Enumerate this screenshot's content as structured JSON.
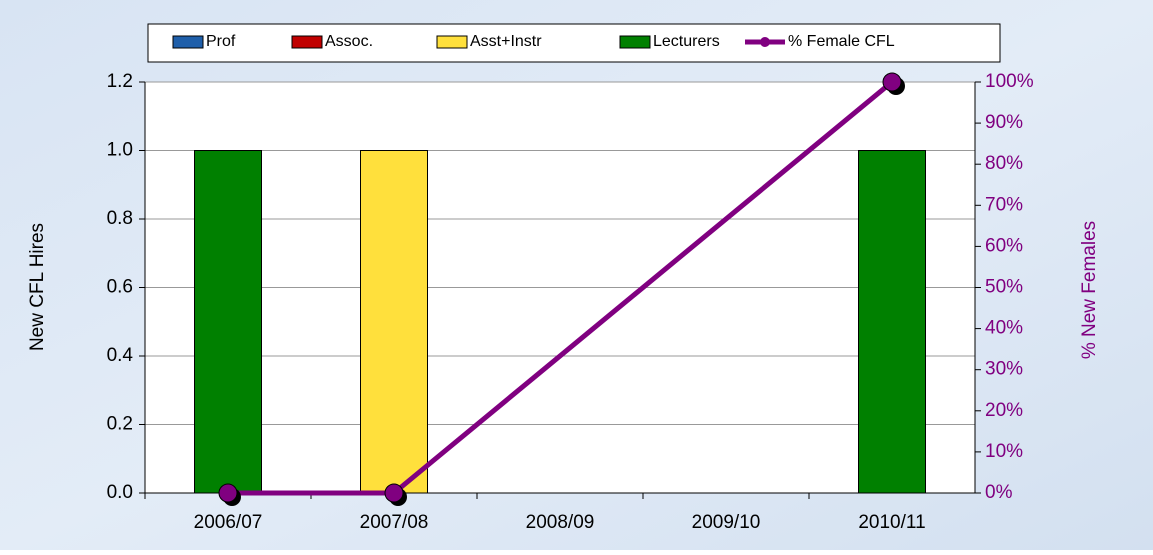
{
  "chart_data": {
    "type": "bar_line",
    "categories": [
      "2006/07",
      "2007/08",
      "2008/09",
      "2009/10",
      "2010/11"
    ],
    "series": [
      {
        "name": "Prof",
        "color": "#1f5faa",
        "values": [
          0,
          0,
          0,
          0,
          0
        ]
      },
      {
        "name": "Assoc.",
        "color": "#c00000",
        "values": [
          0,
          0,
          0,
          0,
          0
        ]
      },
      {
        "name": "Asst+Instr",
        "color": "#ffe03c",
        "values": [
          0,
          1,
          0,
          0,
          0
        ]
      },
      {
        "name": "Lecturers",
        "color": "#008000",
        "values": [
          1,
          0,
          0,
          0,
          1
        ]
      },
      {
        "name": "% Female CFL",
        "color": "#800080",
        "type": "line",
        "axis": "y2",
        "values": [
          0,
          0,
          null,
          null,
          100
        ]
      }
    ],
    "ylabel": "New CFL Hires",
    "y2label": "% New Females",
    "ylim": [
      0,
      1.2
    ],
    "yticks": [
      {
        "value": 0,
        "label": "0.0"
      },
      0.2,
      0.4,
      0.6,
      0.8,
      {
        "value": 1,
        "label": "1.0"
      },
      1.2
    ],
    "y2lim": [
      0,
      100
    ],
    "y2ticks": [
      {
        "value": 0,
        "label": "0%"
      },
      {
        "value": 10,
        "label": "10%"
      },
      {
        "value": 20,
        "label": "20%"
      },
      {
        "value": 30,
        "label": "30%"
      },
      {
        "value": 40,
        "label": "40%"
      },
      {
        "value": 50,
        "label": "50%"
      },
      {
        "value": 60,
        "label": "60%"
      },
      {
        "value": 70,
        "label": "70%"
      },
      {
        "value": 80,
        "label": "80%"
      },
      {
        "value": 90,
        "label": "90%"
      },
      {
        "value": 100,
        "label": "100%"
      }
    ],
    "y2_color": "#800080",
    "grid": true,
    "connect_gaps": true,
    "legend": "top"
  }
}
